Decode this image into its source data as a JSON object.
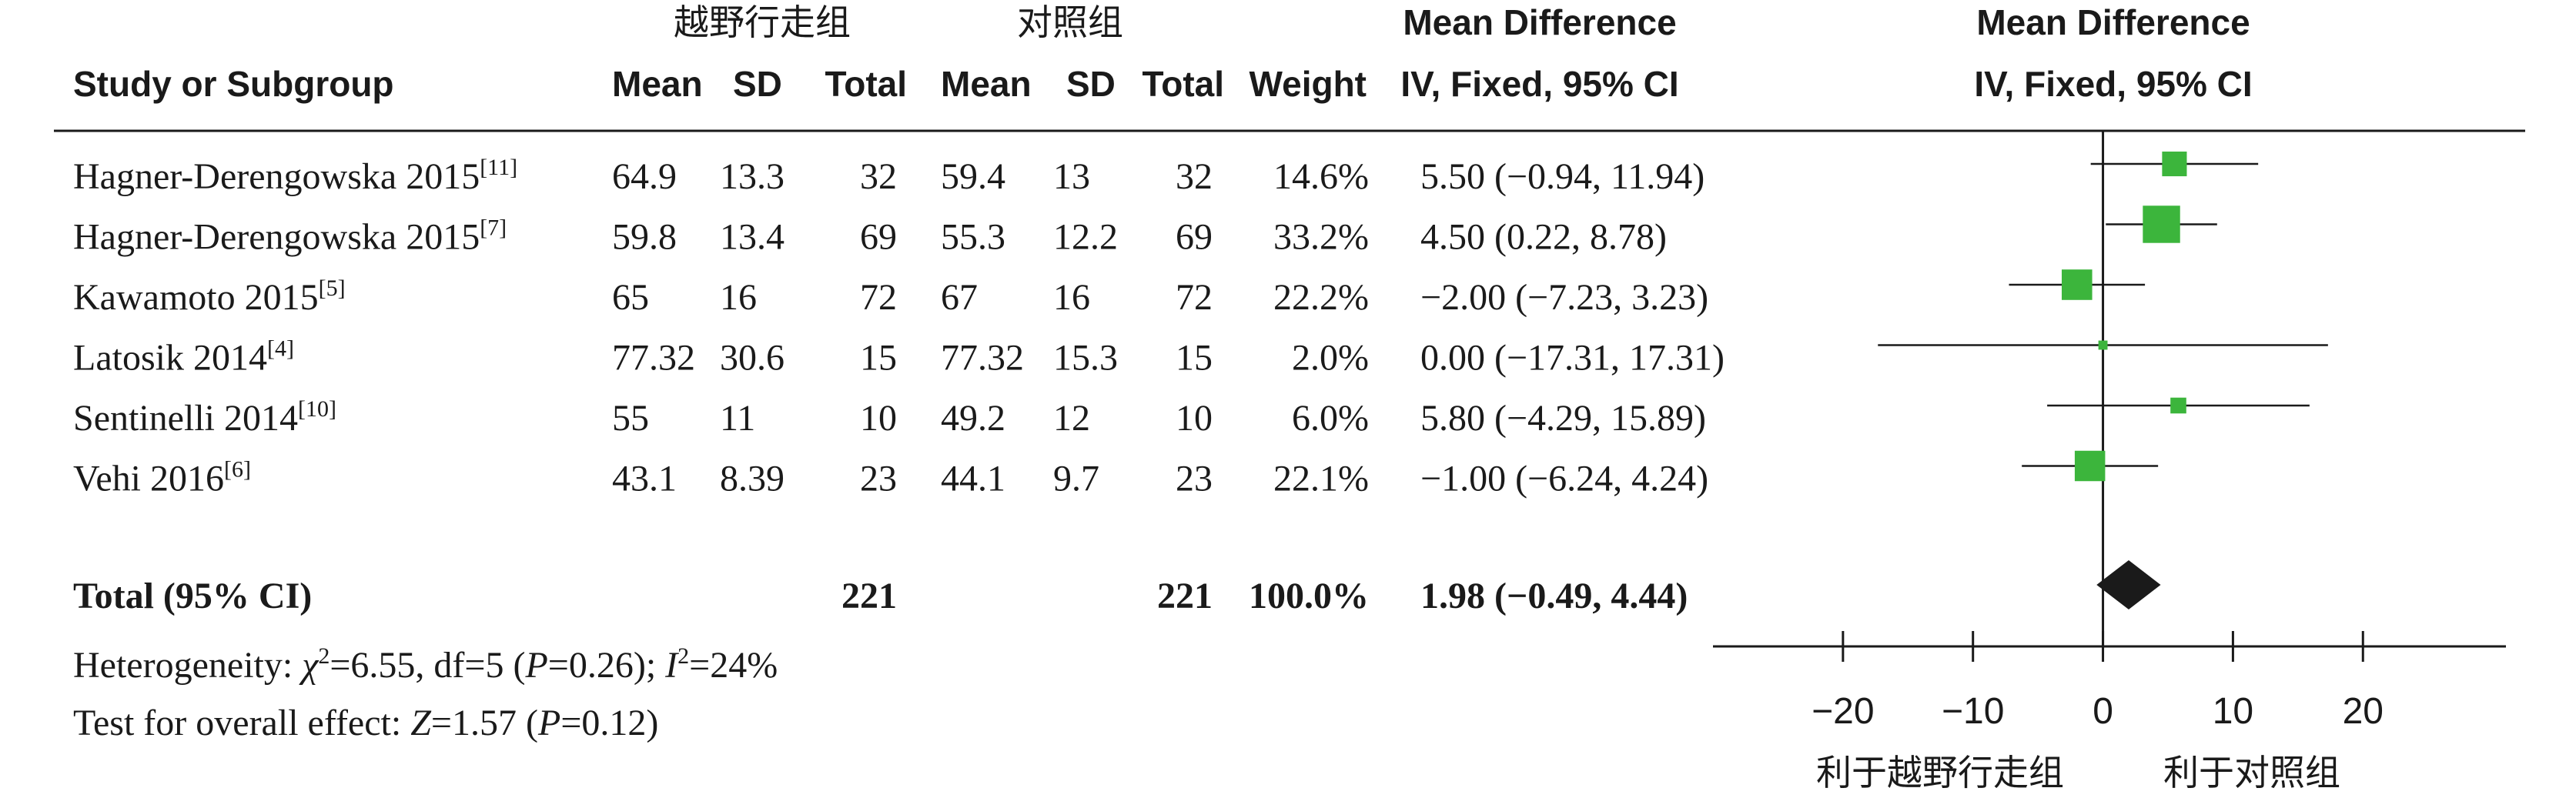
{
  "headers": {
    "study": "Study or Subgroup",
    "exp_group": "越野行走组",
    "ctrl_group": "对照组",
    "mean": "Mean",
    "sd": "SD",
    "total": "Total",
    "weight": "Weight",
    "md_title": "Mean Difference",
    "md_method": "IV, Fixed, 95% CI"
  },
  "footer": {
    "heterogeneity": {
      "lead": "Heterogeneity: ",
      "chi": "χ",
      "chi_sup": "2",
      "chi_val": "=6.55, df=5 (",
      "p": "P",
      "p_val": "=0.26); ",
      "i": "I",
      "i_sup": "2",
      "i_val": "=24%"
    },
    "overall": {
      "lead": "Test for overall effect: ",
      "z": "Z",
      "z_val": "=1.57 (",
      "p": "P",
      "p_val": "=0.12)"
    }
  },
  "colors": {
    "square": "#3cb53c",
    "diamond": "#1a1a1a",
    "line": "#1a1a1a"
  },
  "chart_data": {
    "type": "forest",
    "xlim": [
      -30,
      31
    ],
    "ticks": [
      -20,
      -10,
      0,
      10,
      20
    ],
    "tick_labels": [
      "−20",
      "−10",
      "0",
      "10",
      "20"
    ],
    "favours_left": "利于越野行走组",
    "favours_right": "利于对照组",
    "studies": [
      {
        "name": "Hagner-Derengowska 2015",
        "ref": "[11]",
        "exp_mean": "64.9",
        "exp_sd": "13.3",
        "exp_total": "32",
        "ctrl_mean": "59.4",
        "ctrl_sd": "13",
        "ctrl_total": "32",
        "weight_label": "14.6%",
        "ci_label": "5.50 (−0.94, 11.94)",
        "md": 5.5,
        "lo": -0.94,
        "hi": 11.94,
        "weight": 14.6
      },
      {
        "name": "Hagner-Derengowska 2015",
        "ref": "[7]",
        "exp_mean": "59.8",
        "exp_sd": "13.4",
        "exp_total": "69",
        "ctrl_mean": "55.3",
        "ctrl_sd": "12.2",
        "ctrl_total": "69",
        "weight_label": "33.2%",
        "ci_label": "4.50 (0.22, 8.78)",
        "md": 4.5,
        "lo": 0.22,
        "hi": 8.78,
        "weight": 33.2
      },
      {
        "name": "Kawamoto 2015",
        "ref": "[5]",
        "exp_mean": "65",
        "exp_sd": "16",
        "exp_total": "72",
        "ctrl_mean": "67",
        "ctrl_sd": "16",
        "ctrl_total": "72",
        "weight_label": "22.2%",
        "ci_label": "−2.00 (−7.23, 3.23)",
        "md": -2.0,
        "lo": -7.23,
        "hi": 3.23,
        "weight": 22.2
      },
      {
        "name": "Latosik 2014",
        "ref": "[4]",
        "exp_mean": "77.32",
        "exp_sd": "30.6",
        "exp_total": "15",
        "ctrl_mean": "77.32",
        "ctrl_sd": "15.3",
        "ctrl_total": "15",
        "weight_label": "2.0%",
        "ci_label": "0.00 (−17.31, 17.31)",
        "md": 0.0,
        "lo": -17.31,
        "hi": 17.31,
        "weight": 2.0
      },
      {
        "name": "Sentinelli 2014",
        "ref": "[10]",
        "exp_mean": "55",
        "exp_sd": "11",
        "exp_total": "10",
        "ctrl_mean": "49.2",
        "ctrl_sd": "12",
        "ctrl_total": "10",
        "weight_label": "6.0%",
        "ci_label": "5.80 (−4.29, 15.89)",
        "md": 5.8,
        "lo": -4.29,
        "hi": 15.89,
        "weight": 6.0
      },
      {
        "name": "Vehi 2016",
        "ref": "[6]",
        "exp_mean": "43.1",
        "exp_sd": "8.39",
        "exp_total": "23",
        "ctrl_mean": "44.1",
        "ctrl_sd": "9.7",
        "ctrl_total": "23",
        "weight_label": "22.1%",
        "ci_label": "−1.00 (−6.24, 4.24)",
        "md": -1.0,
        "lo": -6.24,
        "hi": 4.24,
        "weight": 22.1
      }
    ],
    "total": {
      "name": "Total (95% CI)",
      "exp_total": "221",
      "ctrl_total": "221",
      "weight_label": "100.0%",
      "ci_label": "1.98 (−0.49, 4.44)",
      "md": 1.98,
      "lo": -0.49,
      "hi": 4.44
    }
  }
}
